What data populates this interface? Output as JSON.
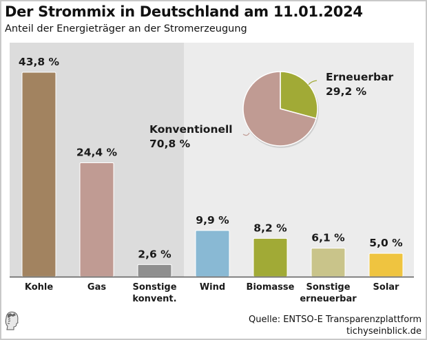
{
  "title": "Der Strommix in Deutschland am 11.01.2024",
  "subtitle": "Anteil der Energieträger an der Stromerzeugung",
  "source": "Quelle: ENTSO-E Transparenzplattform",
  "site": "tichyseinblick.de",
  "logo": "tichys-einblick-head-logo",
  "chart_data": [
    {
      "type": "bar",
      "categories": [
        "Kohle",
        "Gas",
        "Sonstige konvent.",
        "Wind",
        "Biomasse",
        "Sonstige erneuerbar",
        "Solar"
      ],
      "category_lines": [
        [
          "Kohle"
        ],
        [
          "Gas"
        ],
        [
          "Sonstige",
          "konvent."
        ],
        [
          "Wind"
        ],
        [
          "Biomasse"
        ],
        [
          "Sonstige",
          "erneuerbar"
        ],
        [
          "Solar"
        ]
      ],
      "values": [
        43.8,
        24.4,
        2.6,
        9.9,
        8.2,
        6.1,
        5.0
      ],
      "labels": [
        "43,8 %",
        "24,4 %",
        "2,6 %",
        "9,9 %",
        "8,2 %",
        "6,1 %",
        "5,0 %"
      ],
      "colors": [
        "#a28360",
        "#c09b93",
        "#8f8f8f",
        "#89b9d4",
        "#a1aa36",
        "#c9c48a",
        "#efc440"
      ],
      "groups": [
        {
          "name": "Konventionell",
          "members": [
            0,
            1,
            2
          ],
          "background": "#dcdcdc"
        },
        {
          "name": "Erneuerbar",
          "members": [
            3,
            4,
            5,
            6
          ],
          "background": "#ececec"
        }
      ],
      "ylim": [
        0,
        46
      ],
      "grid": false,
      "xlabel": "",
      "ylabel": ""
    },
    {
      "type": "pie",
      "slices": [
        {
          "name": "Erneuerbar",
          "value": 29.2,
          "label": "29,2 %",
          "color": "#a1aa36"
        },
        {
          "name": "Konventionell",
          "value": 70.8,
          "label": "70,8 %",
          "color": "#c09b93"
        }
      ]
    }
  ]
}
